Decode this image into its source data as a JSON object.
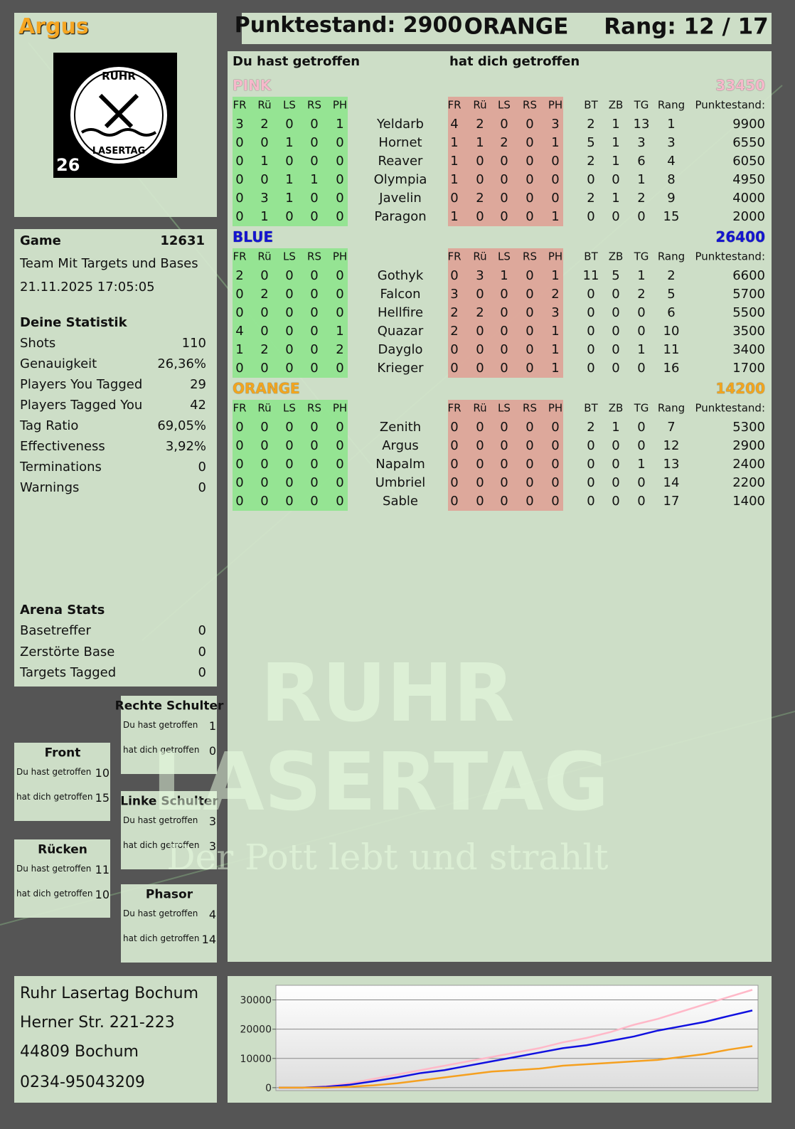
{
  "header": {
    "player": "Argus",
    "score": "Punktestand: 2900",
    "team": "ORANGE",
    "rank": "Rang: 12 / 17"
  },
  "logo": {
    "top": "RUHR",
    "bottom": "LASERTAG",
    "number": "26"
  },
  "game": {
    "label": "Game",
    "id": 12631,
    "mode": "Team Mit Targets und Bases",
    "date": "21.11.2025 17:05:05"
  },
  "statistics": {
    "title": "Deine Statistik",
    "rows": [
      [
        "Shots",
        110
      ],
      [
        "Genauigkeit",
        "26,36%"
      ],
      [
        "Players You Tagged",
        29
      ],
      [
        "Players Tagged You",
        42
      ],
      [
        "Tag Ratio",
        "69,05%"
      ],
      [
        "Effectiveness",
        "3,92%"
      ],
      [
        "Terminations",
        0
      ],
      [
        "Warnings",
        0
      ]
    ]
  },
  "arena": {
    "title": "Arena Stats",
    "rows": [
      [
        "Basetreffer",
        0
      ],
      [
        "Zerstörte Base",
        0
      ],
      [
        "Targets Tagged",
        0
      ]
    ]
  },
  "hit_zones": [
    {
      "title": "Rechte Schulter",
      "rows": [
        [
          "Du hast getroffen",
          1
        ],
        [
          "hat dich getroffen",
          0
        ]
      ]
    },
    {
      "title": "Front",
      "rows": [
        [
          "Du hast getroffen",
          10
        ],
        [
          "hat dich getroffen",
          15
        ]
      ]
    },
    {
      "title": "Linke Schulter",
      "rows": [
        [
          "Du hast getroffen",
          3
        ],
        [
          "hat dich getroffen",
          3
        ]
      ]
    },
    {
      "title": "Rücken",
      "rows": [
        [
          "Du hast getroffen",
          11
        ],
        [
          "hat dich getroffen",
          10
        ]
      ]
    },
    {
      "title": "Phasor",
      "rows": [
        [
          "Du hast getroffen",
          4
        ],
        [
          "hat dich getroffen",
          14
        ]
      ]
    }
  ],
  "main_table": {
    "left_heading": "Du hast getroffen",
    "right_heading": "hat dich getroffen",
    "left_columns": [
      "FR",
      "Rü",
      "LS",
      "RS",
      "PH"
    ],
    "right_columns": [
      "FR",
      "Rü",
      "LS",
      "RS",
      "PH",
      "BT",
      "ZB",
      "TG",
      "Rang",
      "Punktestand:"
    ],
    "teams": [
      {
        "name": "PINK",
        "score": 33450,
        "color": "#f6b9cb",
        "players": [
          {
            "name": "Yeldarb",
            "given": [
              3,
              2,
              0,
              0,
              1
            ],
            "received": [
              4,
              2,
              0,
              0,
              3
            ],
            "stats": [
              2,
              1,
              13,
              1,
              9900
            ]
          },
          {
            "name": "Hornet",
            "given": [
              0,
              0,
              1,
              0,
              0
            ],
            "received": [
              1,
              1,
              2,
              0,
              1
            ],
            "stats": [
              5,
              1,
              3,
              3,
              6550
            ]
          },
          {
            "name": "Reaver",
            "given": [
              0,
              1,
              0,
              0,
              0
            ],
            "received": [
              1,
              0,
              0,
              0,
              0
            ],
            "stats": [
              2,
              1,
              6,
              4,
              6050
            ]
          },
          {
            "name": "Olympia",
            "given": [
              0,
              0,
              1,
              1,
              0
            ],
            "received": [
              1,
              0,
              0,
              0,
              0
            ],
            "stats": [
              0,
              0,
              1,
              8,
              4950
            ]
          },
          {
            "name": "Javelin",
            "given": [
              0,
              3,
              1,
              0,
              0
            ],
            "received": [
              0,
              2,
              0,
              0,
              0
            ],
            "stats": [
              2,
              1,
              2,
              9,
              4000
            ]
          },
          {
            "name": "Paragon",
            "given": [
              0,
              1,
              0,
              0,
              0
            ],
            "received": [
              1,
              0,
              0,
              0,
              1
            ],
            "stats": [
              0,
              0,
              0,
              15,
              2000
            ]
          }
        ]
      },
      {
        "name": "BLUE",
        "score": 26400,
        "color": "#1414d0",
        "players": [
          {
            "name": "Gothyk",
            "given": [
              2,
              0,
              0,
              0,
              0
            ],
            "received": [
              0,
              3,
              1,
              0,
              1
            ],
            "stats": [
              11,
              5,
              1,
              2,
              6600
            ]
          },
          {
            "name": "Falcon",
            "given": [
              0,
              2,
              0,
              0,
              0
            ],
            "received": [
              3,
              0,
              0,
              0,
              2
            ],
            "stats": [
              0,
              0,
              2,
              5,
              5700
            ]
          },
          {
            "name": "Hellfire",
            "given": [
              0,
              0,
              0,
              0,
              0
            ],
            "received": [
              2,
              2,
              0,
              0,
              3
            ],
            "stats": [
              0,
              0,
              0,
              6,
              5500
            ]
          },
          {
            "name": "Quazar",
            "given": [
              4,
              0,
              0,
              0,
              1
            ],
            "received": [
              2,
              0,
              0,
              0,
              1
            ],
            "stats": [
              0,
              0,
              0,
              10,
              3500
            ]
          },
          {
            "name": "Dayglo",
            "given": [
              1,
              2,
              0,
              0,
              2
            ],
            "received": [
              0,
              0,
              0,
              0,
              1
            ],
            "stats": [
              0,
              0,
              1,
              11,
              3400
            ]
          },
          {
            "name": "Krieger",
            "given": [
              0,
              0,
              0,
              0,
              0
            ],
            "received": [
              0,
              0,
              0,
              0,
              1
            ],
            "stats": [
              0,
              0,
              0,
              16,
              1700
            ]
          }
        ]
      },
      {
        "name": "ORANGE",
        "score": 14200,
        "color": "#f2a51e",
        "players": [
          {
            "name": "Zenith",
            "given": [
              0,
              0,
              0,
              0,
              0
            ],
            "received": [
              0,
              0,
              0,
              0,
              0
            ],
            "stats": [
              2,
              1,
              0,
              7,
              5300
            ]
          },
          {
            "name": "Argus",
            "given": [
              0,
              0,
              0,
              0,
              0
            ],
            "received": [
              0,
              0,
              0,
              0,
              0
            ],
            "stats": [
              0,
              0,
              0,
              12,
              2900
            ]
          },
          {
            "name": "Napalm",
            "given": [
              0,
              0,
              0,
              0,
              0
            ],
            "received": [
              0,
              0,
              0,
              0,
              0
            ],
            "stats": [
              0,
              0,
              1,
              13,
              2400
            ]
          },
          {
            "name": "Umbriel",
            "given": [
              0,
              0,
              0,
              0,
              0
            ],
            "received": [
              0,
              0,
              0,
              0,
              0
            ],
            "stats": [
              0,
              0,
              0,
              14,
              2200
            ]
          },
          {
            "name": "Sable",
            "given": [
              0,
              0,
              0,
              0,
              0
            ],
            "received": [
              0,
              0,
              0,
              0,
              0
            ],
            "stats": [
              0,
              0,
              0,
              17,
              1400
            ]
          }
        ]
      }
    ]
  },
  "address": [
    "Ruhr Lasertag Bochum",
    "Herner Str. 221-223",
    "44809 Bochum",
    "0234-95043209"
  ],
  "watermark": [
    "RUHR",
    "LASERTAG",
    "Der Pott lebt und strahlt"
  ],
  "chart_data": {
    "type": "line",
    "categories": [
      null,
      null,
      null,
      null,
      null,
      null,
      null,
      null,
      null,
      null,
      null,
      null,
      null,
      null,
      null,
      null,
      null,
      null,
      null,
      null,
      null
    ],
    "ylim": [
      -1000,
      35000
    ],
    "yticks": [
      0,
      10000,
      20000,
      30000
    ],
    "grid": true,
    "series": [
      {
        "color": "#ffb8c8",
        "values": [
          0,
          0,
          500,
          1500,
          3000,
          4500,
          6000,
          7500,
          9000,
          10500,
          12000,
          13500,
          15500,
          17000,
          19000,
          21500,
          23500,
          26000,
          28500,
          31000,
          33450
        ]
      },
      {
        "color": "#1010e0",
        "values": [
          0,
          0,
          300,
          1000,
          2200,
          3500,
          5000,
          6000,
          7500,
          9000,
          10500,
          12000,
          13500,
          14500,
          16000,
          17500,
          19500,
          21000,
          22500,
          24500,
          26400
        ]
      },
      {
        "color": "#f5a020",
        "values": [
          0,
          0,
          0,
          300,
          800,
          1500,
          2500,
          3500,
          4500,
          5500,
          6000,
          6500,
          7500,
          8000,
          8500,
          9000,
          9500,
          10500,
          11500,
          13000,
          14200
        ]
      }
    ]
  }
}
